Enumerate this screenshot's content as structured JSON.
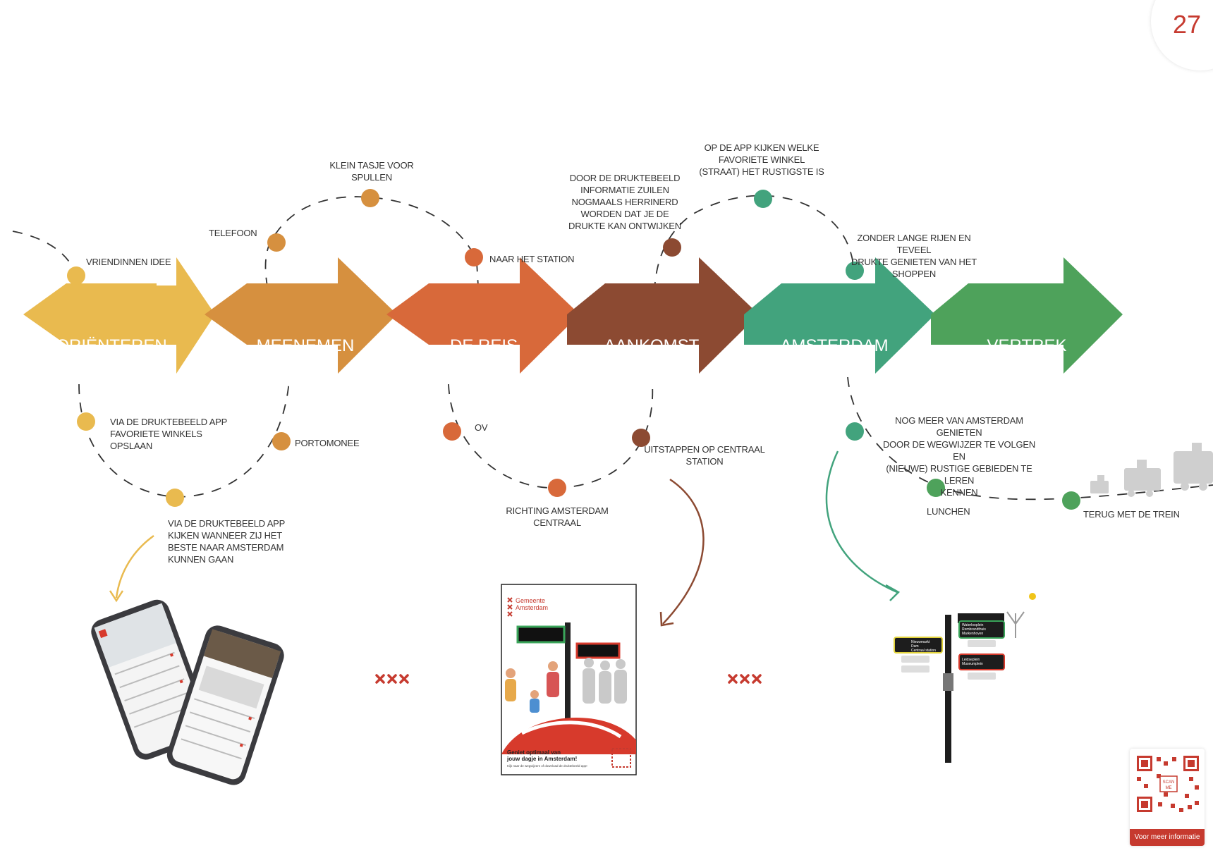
{
  "page": {
    "number": "27"
  },
  "stages": [
    {
      "label": "ORIËNTEREN",
      "color": "#e9ba4f"
    },
    {
      "label": "MEENEMEN",
      "color": "#d6903f"
    },
    {
      "label": "DE REIS",
      "color": "#d8693a"
    },
    {
      "label": "AANKOMST",
      "color": "#8c4a32"
    },
    {
      "label": "AMSTERDAM",
      "color": "#42a37d"
    },
    {
      "label": "VERTREK",
      "color": "#4ea25b"
    }
  ],
  "touchpoints": {
    "vriendinnen": "VRIENDINNEN IDEE",
    "telefoon": "TELEFOON",
    "tasje": "KLEIN TASJE VOOR\nSPULLEN",
    "station": "NAAR HET STATION",
    "zuilen": "DOOR DE DRUKTEBEELD\nINFORMATIE ZUILEN\nNOGMAALS HERRINERD\nWORDEN DAT JE DE\nDRUKTE KAN ONTWIJKEN",
    "app_winkel": "OP DE APP KIJKEN WELKE\nFAVORIETE WINKEL\n(STRAAT) HET RUSTIGSTE IS",
    "shoppen": "ZONDER LANGE RIJEN EN TEVEEL\nDRUKTE GENIETEN VAN HET\nSHOPPEN",
    "favoriete": "VIA DE DRUKTEBEELD APP\nFAVORIETE WINKELS\nOPSLAAN",
    "portomonee": "PORTOMONEE",
    "ov": "OV",
    "uitstappen": "UITSTAPPEN OP CENTRAAL\nSTATION",
    "wegwijzer": "NOG MEER VAN AMSTERDAM GENIETEN\nDOOR DE WEGWIJZER TE VOLGEN EN\n(NIEUWE) RUSTIGE GEBIEDEN TE LEREN\nKENNEN",
    "richting": "RICHTING AMSTERDAM\nCENTRAAL",
    "lunchen": "LUNCHEN",
    "trein": "TERUG MET DE TREIN",
    "wanneer": "VIA DE DRUKTEBEELD APP\nKIJKEN WANNEER ZIJ HET\nBESTE NAAR AMSTERDAM\nKUNNEN GAAN"
  },
  "poster": {
    "org_line1": "Gemeente",
    "org_line2": "Amsterdam",
    "headline_line1": "Geniet optimaal van",
    "headline_line2": "jouw dagje in Amsterdam!",
    "footnote": "Kijk naar de wegwijzers of download de druktebeeld app!"
  },
  "signpost": {
    "left_sign": [
      "Nieuwmarkt",
      "Dam",
      "Centraal station"
    ],
    "right_top_sign": [
      "Waterlooplein",
      "Rembrandthuis",
      "Markenhoven"
    ],
    "right_bottom_sign": [
      "Leidseplein",
      "Museumplein"
    ]
  },
  "qr": {
    "badge_line1": "SCAN",
    "badge_line2": "ME",
    "caption": "Voor meer informatie"
  },
  "colors": {
    "accent_red": "#c63a2f",
    "dash_line": "#333333"
  },
  "icons": [
    "amsterdam-xxx-icon",
    "phone-icon",
    "train-icon",
    "qr-code-icon",
    "curved-arrow-icon"
  ]
}
